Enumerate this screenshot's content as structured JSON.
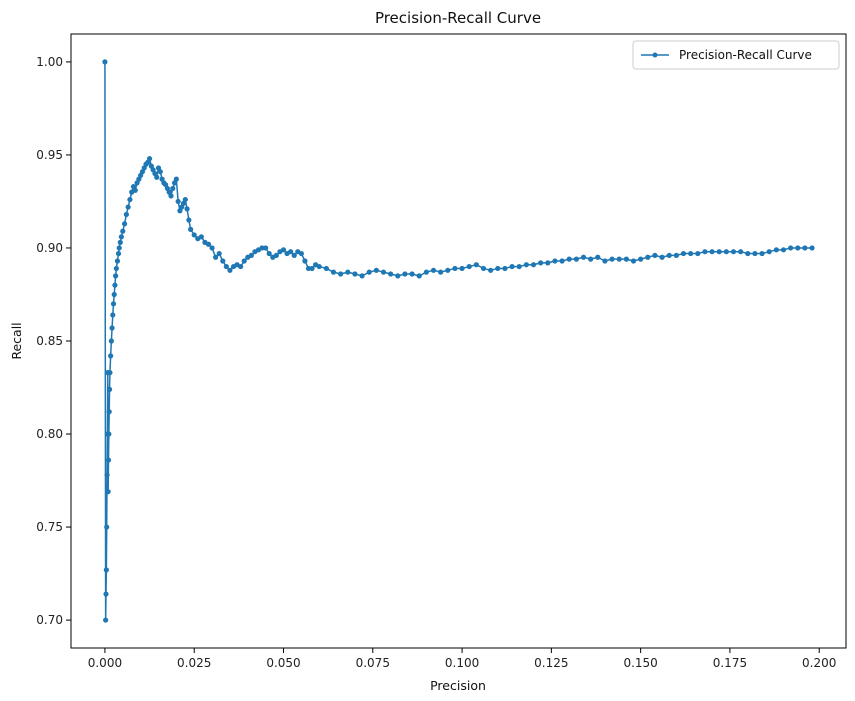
{
  "chart_data": {
    "type": "line",
    "title": "Precision-Recall Curve",
    "xlabel": "Precision",
    "ylabel": "Recall",
    "xlim": [
      -0.0095,
      0.2075
    ],
    "ylim": [
      0.685,
      1.015
    ],
    "xticks": [
      {
        "value": 0.0,
        "label": "0.000"
      },
      {
        "value": 0.025,
        "label": "0.025"
      },
      {
        "value": 0.05,
        "label": "0.050"
      },
      {
        "value": 0.075,
        "label": "0.075"
      },
      {
        "value": 0.1,
        "label": "0.100"
      },
      {
        "value": 0.125,
        "label": "0.125"
      },
      {
        "value": 0.15,
        "label": "0.150"
      },
      {
        "value": 0.175,
        "label": "0.175"
      },
      {
        "value": 0.2,
        "label": "0.200"
      }
    ],
    "yticks": [
      {
        "value": 0.7,
        "label": "0.70"
      },
      {
        "value": 0.75,
        "label": "0.75"
      },
      {
        "value": 0.8,
        "label": "0.80"
      },
      {
        "value": 0.85,
        "label": "0.85"
      },
      {
        "value": 0.9,
        "label": "0.90"
      },
      {
        "value": 0.95,
        "label": "0.95"
      },
      {
        "value": 1.0,
        "label": "1.00"
      }
    ],
    "grid": false,
    "legend": {
      "position": "top-right",
      "entries": [
        "Precision-Recall Curve"
      ]
    },
    "colors": {
      "series": "#1f77b4",
      "axes": "#000000"
    },
    "series": [
      {
        "name": "Precision-Recall Curve",
        "marker": "circle",
        "points": [
          [
            0.0,
            1.0
          ],
          [
            0.0002,
            0.7
          ],
          [
            0.0003,
            0.714
          ],
          [
            0.0004,
            0.727
          ],
          [
            0.0005,
            0.75
          ],
          [
            0.0006,
            0.778
          ],
          [
            0.0007,
            0.8
          ],
          [
            0.0008,
            0.833
          ],
          [
            0.0009,
            0.769
          ],
          [
            0.001,
            0.786
          ],
          [
            0.0011,
            0.8
          ],
          [
            0.0012,
            0.812
          ],
          [
            0.0013,
            0.824
          ],
          [
            0.0014,
            0.833
          ],
          [
            0.0016,
            0.842
          ],
          [
            0.0018,
            0.85
          ],
          [
            0.002,
            0.857
          ],
          [
            0.0022,
            0.864
          ],
          [
            0.0024,
            0.87
          ],
          [
            0.0026,
            0.875
          ],
          [
            0.0028,
            0.88
          ],
          [
            0.003,
            0.885
          ],
          [
            0.0032,
            0.889
          ],
          [
            0.0035,
            0.893
          ],
          [
            0.0038,
            0.897
          ],
          [
            0.004,
            0.9
          ],
          [
            0.0043,
            0.903
          ],
          [
            0.0046,
            0.906
          ],
          [
            0.005,
            0.909
          ],
          [
            0.0055,
            0.913
          ],
          [
            0.006,
            0.918
          ],
          [
            0.0065,
            0.922
          ],
          [
            0.007,
            0.926
          ],
          [
            0.0075,
            0.93
          ],
          [
            0.008,
            0.933
          ],
          [
            0.0085,
            0.931
          ],
          [
            0.009,
            0.935
          ],
          [
            0.0095,
            0.937
          ],
          [
            0.01,
            0.939
          ],
          [
            0.0105,
            0.941
          ],
          [
            0.011,
            0.943
          ],
          [
            0.0115,
            0.945
          ],
          [
            0.012,
            0.946
          ],
          [
            0.0125,
            0.948
          ],
          [
            0.013,
            0.944
          ],
          [
            0.0135,
            0.942
          ],
          [
            0.014,
            0.94
          ],
          [
            0.0145,
            0.938
          ],
          [
            0.015,
            0.943
          ],
          [
            0.0155,
            0.941
          ],
          [
            0.016,
            0.937
          ],
          [
            0.0165,
            0.935
          ],
          [
            0.017,
            0.934
          ],
          [
            0.0175,
            0.932
          ],
          [
            0.018,
            0.93
          ],
          [
            0.0185,
            0.928
          ],
          [
            0.019,
            0.932
          ],
          [
            0.0195,
            0.935
          ],
          [
            0.02,
            0.937
          ],
          [
            0.0205,
            0.925
          ],
          [
            0.021,
            0.92
          ],
          [
            0.0215,
            0.922
          ],
          [
            0.022,
            0.924
          ],
          [
            0.0225,
            0.926
          ],
          [
            0.023,
            0.921
          ],
          [
            0.0235,
            0.915
          ],
          [
            0.024,
            0.91
          ],
          [
            0.025,
            0.907
          ],
          [
            0.026,
            0.905
          ],
          [
            0.027,
            0.906
          ],
          [
            0.028,
            0.903
          ],
          [
            0.029,
            0.902
          ],
          [
            0.03,
            0.9
          ],
          [
            0.031,
            0.895
          ],
          [
            0.032,
            0.897
          ],
          [
            0.033,
            0.893
          ],
          [
            0.034,
            0.89
          ],
          [
            0.035,
            0.888
          ],
          [
            0.036,
            0.89
          ],
          [
            0.037,
            0.891
          ],
          [
            0.038,
            0.89
          ],
          [
            0.039,
            0.893
          ],
          [
            0.04,
            0.895
          ],
          [
            0.041,
            0.896
          ],
          [
            0.042,
            0.898
          ],
          [
            0.043,
            0.899
          ],
          [
            0.044,
            0.9
          ],
          [
            0.045,
            0.9
          ],
          [
            0.046,
            0.897
          ],
          [
            0.047,
            0.895
          ],
          [
            0.048,
            0.896
          ],
          [
            0.049,
            0.898
          ],
          [
            0.05,
            0.899
          ],
          [
            0.051,
            0.897
          ],
          [
            0.052,
            0.898
          ],
          [
            0.053,
            0.896
          ],
          [
            0.054,
            0.898
          ],
          [
            0.055,
            0.897
          ],
          [
            0.056,
            0.893
          ],
          [
            0.057,
            0.889
          ],
          [
            0.058,
            0.889
          ],
          [
            0.059,
            0.891
          ],
          [
            0.06,
            0.89
          ],
          [
            0.062,
            0.889
          ],
          [
            0.064,
            0.887
          ],
          [
            0.066,
            0.886
          ],
          [
            0.068,
            0.887
          ],
          [
            0.07,
            0.886
          ],
          [
            0.072,
            0.885
          ],
          [
            0.074,
            0.887
          ],
          [
            0.076,
            0.888
          ],
          [
            0.078,
            0.887
          ],
          [
            0.08,
            0.886
          ],
          [
            0.082,
            0.885
          ],
          [
            0.084,
            0.886
          ],
          [
            0.086,
            0.886
          ],
          [
            0.088,
            0.885
          ],
          [
            0.09,
            0.887
          ],
          [
            0.092,
            0.888
          ],
          [
            0.094,
            0.887
          ],
          [
            0.096,
            0.888
          ],
          [
            0.098,
            0.889
          ],
          [
            0.1,
            0.889
          ],
          [
            0.102,
            0.89
          ],
          [
            0.104,
            0.891
          ],
          [
            0.106,
            0.889
          ],
          [
            0.108,
            0.888
          ],
          [
            0.11,
            0.889
          ],
          [
            0.112,
            0.889
          ],
          [
            0.114,
            0.89
          ],
          [
            0.116,
            0.89
          ],
          [
            0.118,
            0.891
          ],
          [
            0.12,
            0.891
          ],
          [
            0.122,
            0.892
          ],
          [
            0.124,
            0.892
          ],
          [
            0.126,
            0.893
          ],
          [
            0.128,
            0.893
          ],
          [
            0.13,
            0.894
          ],
          [
            0.132,
            0.894
          ],
          [
            0.134,
            0.895
          ],
          [
            0.136,
            0.894
          ],
          [
            0.138,
            0.895
          ],
          [
            0.14,
            0.893
          ],
          [
            0.142,
            0.894
          ],
          [
            0.144,
            0.894
          ],
          [
            0.146,
            0.894
          ],
          [
            0.148,
            0.893
          ],
          [
            0.15,
            0.894
          ],
          [
            0.152,
            0.895
          ],
          [
            0.154,
            0.896
          ],
          [
            0.156,
            0.895
          ],
          [
            0.158,
            0.896
          ],
          [
            0.16,
            0.896
          ],
          [
            0.162,
            0.897
          ],
          [
            0.164,
            0.897
          ],
          [
            0.166,
            0.897
          ],
          [
            0.168,
            0.898
          ],
          [
            0.17,
            0.898
          ],
          [
            0.172,
            0.898
          ],
          [
            0.174,
            0.898
          ],
          [
            0.176,
            0.898
          ],
          [
            0.178,
            0.898
          ],
          [
            0.18,
            0.897
          ],
          [
            0.182,
            0.897
          ],
          [
            0.184,
            0.897
          ],
          [
            0.186,
            0.898
          ],
          [
            0.188,
            0.899
          ],
          [
            0.19,
            0.899
          ],
          [
            0.192,
            0.9
          ],
          [
            0.194,
            0.9
          ],
          [
            0.196,
            0.9
          ],
          [
            0.198,
            0.9
          ]
        ]
      }
    ]
  }
}
